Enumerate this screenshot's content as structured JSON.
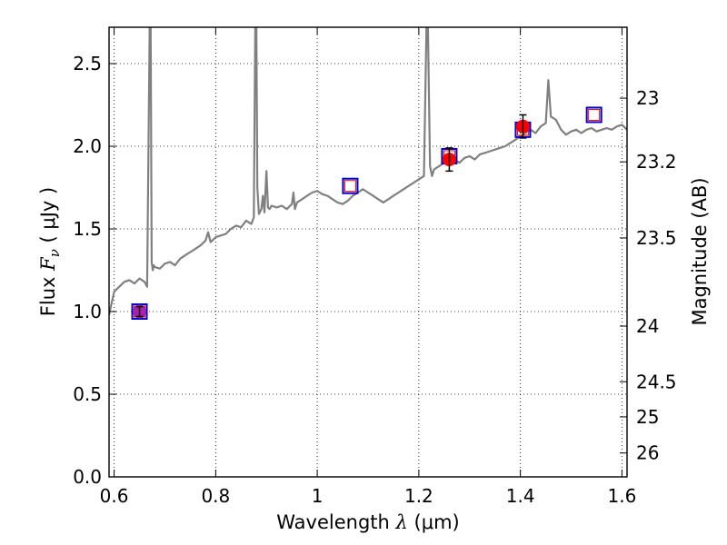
{
  "chart_data": {
    "type": "line",
    "xlabel": {
      "text": "Wavelength",
      "symbol": "λ",
      "unit": "(μm)"
    },
    "ylabel": {
      "text": "Flux",
      "symbol": "F",
      "subscript": "ν",
      "unit": "( μJy )"
    },
    "y2label": "Magnitude (AB)",
    "xlim": [
      0.59,
      1.61
    ],
    "ylim": [
      0,
      2.72
    ],
    "grid": true,
    "grid_style": "dotted",
    "x_ticks": [
      {
        "value": 0.6,
        "label": "0.6"
      },
      {
        "value": 0.8,
        "label": "0.8"
      },
      {
        "value": 1.0,
        "label": "1"
      },
      {
        "value": 1.2,
        "label": "1.2"
      },
      {
        "value": 1.4,
        "label": "1.4"
      },
      {
        "value": 1.6,
        "label": "1.6"
      }
    ],
    "y_ticks": [
      {
        "value": 0.0,
        "label": "0.0"
      },
      {
        "value": 0.5,
        "label": "0.5"
      },
      {
        "value": 1.0,
        "label": "1.0"
      },
      {
        "value": 1.5,
        "label": "1.5"
      },
      {
        "value": 2.0,
        "label": "2.0"
      },
      {
        "value": 2.5,
        "label": "2.5"
      }
    ],
    "y2_ticks": [
      {
        "label": "23",
        "mag": 23.0
      },
      {
        "label": "23.2",
        "mag": 23.2
      },
      {
        "label": "23.5",
        "mag": 23.5
      },
      {
        "label": "24",
        "mag": 24.0
      },
      {
        "label": "24.5",
        "mag": 24.5
      },
      {
        "label": "25",
        "mag": 25.0
      },
      {
        "label": "26",
        "mag": 26.0
      }
    ],
    "series": [
      {
        "type": "line",
        "color": "#808080",
        "x": [
          0.59,
          0.6,
          0.61,
          0.62,
          0.63,
          0.64,
          0.65,
          0.66,
          0.665,
          0.67,
          0.672,
          0.674,
          0.676,
          0.678,
          0.68,
          0.69,
          0.7,
          0.71,
          0.72,
          0.73,
          0.74,
          0.75,
          0.76,
          0.77,
          0.78,
          0.785,
          0.79,
          0.8,
          0.81,
          0.82,
          0.83,
          0.84,
          0.85,
          0.86,
          0.87,
          0.875,
          0.878,
          0.88,
          0.882,
          0.885,
          0.89,
          0.893,
          0.896,
          0.9,
          0.903,
          0.906,
          0.91,
          0.92,
          0.93,
          0.94,
          0.95,
          0.953,
          0.956,
          0.96,
          0.97,
          0.98,
          0.99,
          1.0,
          1.01,
          1.02,
          1.03,
          1.04,
          1.05,
          1.06,
          1.07,
          1.08,
          1.09,
          1.1,
          1.11,
          1.12,
          1.13,
          1.14,
          1.15,
          1.16,
          1.17,
          1.18,
          1.19,
          1.2,
          1.21,
          1.215,
          1.218,
          1.222,
          1.226,
          1.23,
          1.24,
          1.25,
          1.26,
          1.27,
          1.28,
          1.29,
          1.3,
          1.31,
          1.32,
          1.33,
          1.34,
          1.35,
          1.36,
          1.37,
          1.38,
          1.39,
          1.4,
          1.41,
          1.42,
          1.43,
          1.44,
          1.45,
          1.455,
          1.46,
          1.47,
          1.48,
          1.49,
          1.5,
          1.51,
          1.52,
          1.53,
          1.54,
          1.55,
          1.56,
          1.57,
          1.58,
          1.59,
          1.6,
          1.61
        ],
        "y": [
          0.98,
          1.12,
          1.15,
          1.18,
          1.19,
          1.17,
          1.2,
          1.18,
          1.15,
          2.72,
          2.72,
          1.3,
          1.25,
          1.28,
          1.27,
          1.26,
          1.29,
          1.3,
          1.28,
          1.32,
          1.34,
          1.36,
          1.38,
          1.4,
          1.43,
          1.48,
          1.42,
          1.45,
          1.46,
          1.47,
          1.5,
          1.52,
          1.51,
          1.55,
          1.53,
          1.57,
          2.72,
          2.72,
          1.75,
          1.59,
          1.62,
          1.7,
          1.6,
          1.85,
          1.63,
          1.62,
          1.64,
          1.63,
          1.64,
          1.62,
          1.65,
          1.72,
          1.62,
          1.66,
          1.68,
          1.7,
          1.72,
          1.73,
          1.71,
          1.7,
          1.68,
          1.66,
          1.65,
          1.67,
          1.7,
          1.72,
          1.74,
          1.72,
          1.7,
          1.68,
          1.66,
          1.68,
          1.7,
          1.72,
          1.74,
          1.76,
          1.78,
          1.8,
          1.82,
          2.72,
          2.72,
          1.88,
          1.82,
          1.86,
          1.88,
          1.9,
          1.91,
          1.92,
          1.9,
          1.93,
          1.94,
          1.92,
          1.95,
          1.96,
          1.97,
          1.98,
          1.99,
          2.0,
          2.02,
          2.04,
          2.06,
          2.08,
          2.1,
          2.08,
          2.12,
          2.14,
          2.4,
          2.18,
          2.16,
          2.1,
          2.07,
          2.09,
          2.1,
          2.08,
          2.1,
          2.11,
          2.09,
          2.1,
          2.11,
          2.1,
          2.12,
          2.13,
          2.1
        ]
      },
      {
        "type": "model_photometry",
        "marker": "open-square",
        "edgecolor": "#0000cc",
        "x": [
          0.65,
          1.065,
          1.26,
          1.405,
          1.545
        ],
        "y": [
          1.0,
          1.76,
          1.94,
          2.1,
          2.19
        ]
      },
      {
        "type": "observed_photometry",
        "marker": "filled-circle",
        "color": "#ff0000",
        "x": [
          1.26,
          1.405
        ],
        "y": [
          1.92,
          2.12
        ],
        "yerr": [
          0.07,
          0.07
        ]
      },
      {
        "type": "observed_photometry",
        "marker": "filled-circle",
        "color": "#aa22aa",
        "x": [
          0.65
        ],
        "y": [
          1.0
        ],
        "yerr": [
          0.03
        ]
      }
    ]
  }
}
